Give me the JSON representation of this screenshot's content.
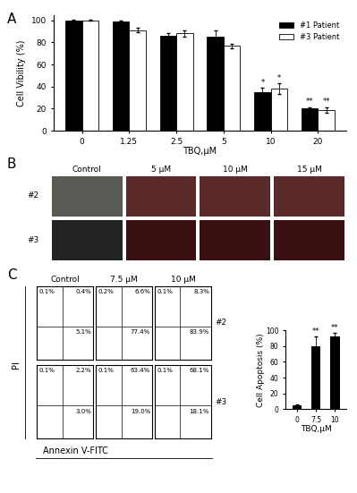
{
  "panel_labels": [
    "A",
    "B",
    "C"
  ],
  "chart_data": [
    {
      "type": "bar",
      "x_label": "TBQ,μM",
      "y_label": "Cell Vibility (%)",
      "categories": [
        "0",
        "1.25",
        "2.5",
        "5",
        "10",
        "20"
      ],
      "series": [
        {
          "name": "#1 Patient",
          "color": "#000000",
          "values": [
            100,
            99,
            86,
            85,
            35,
            20
          ],
          "errors": [
            0.5,
            1,
            2,
            6,
            4,
            1.5
          ],
          "marks": [
            null,
            null,
            null,
            null,
            "*",
            "**"
          ]
        },
        {
          "name": "#3 Patient",
          "color": "#ffffff",
          "values": [
            100,
            91,
            88,
            77,
            38,
            19
          ],
          "errors": [
            0.5,
            2,
            3,
            2,
            5,
            2.5
          ],
          "marks": [
            null,
            null,
            null,
            null,
            "*",
            "**"
          ]
        }
      ],
      "ylim": [
        0,
        105
      ],
      "yticks": [
        0,
        20,
        40,
        60,
        80,
        100
      ],
      "legend": "upper right"
    },
    {
      "type": "bar",
      "x_label": "TBQ,μM",
      "y_label": "Cell Apoptosis (%)",
      "categories": [
        "0",
        "7.5",
        "10"
      ],
      "values": [
        5,
        80,
        92
      ],
      "errors": [
        1,
        12,
        5
      ],
      "marks": [
        null,
        "**",
        "**"
      ],
      "color": "#000000",
      "ylim": [
        0,
        100
      ],
      "yticks": [
        0,
        20,
        40,
        60,
        80,
        100
      ]
    }
  ],
  "images": {
    "columns": [
      "Control",
      "5 μM",
      "10 μM",
      "15 μM"
    ],
    "rows": [
      "#2",
      "#3"
    ]
  },
  "flow_cytometry": {
    "y_label": "PI",
    "x_label": "Annexin V-FITC",
    "columns": [
      "Control",
      "7.5 μM",
      "10 μM"
    ],
    "rows": [
      {
        "label": "#2",
        "plots": [
          {
            "upper_left": "0.1%",
            "upper_right": "0.4%",
            "lower_right": "5.1%"
          },
          {
            "upper_left": "0.2%",
            "upper_right": "6.6%",
            "lower_right": "77.4%"
          },
          {
            "upper_left": "0.1%",
            "upper_right": "8.3%",
            "lower_right": "83.9%"
          }
        ]
      },
      {
        "label": "#3",
        "plots": [
          {
            "upper_left": "0.1%",
            "upper_right": "2.2%",
            "lower_right": "3.0%"
          },
          {
            "upper_left": "0.1%",
            "upper_right": "63.4%",
            "lower_right": "19.0%"
          },
          {
            "upper_left": "0.1%",
            "upper_right": "68.1%",
            "lower_right": "18.1%"
          }
        ]
      }
    ]
  }
}
